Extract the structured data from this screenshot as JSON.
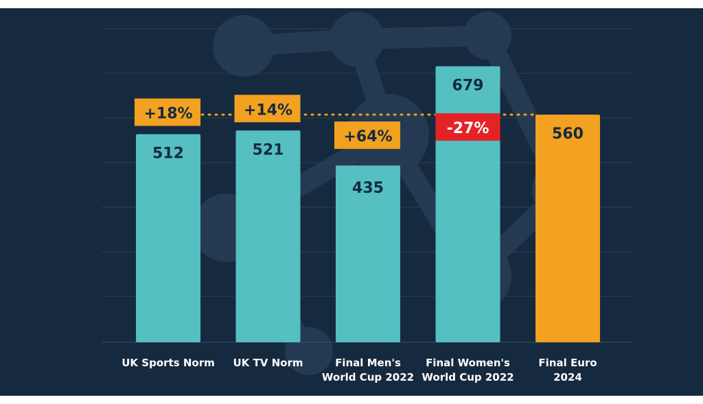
{
  "chart_data": {
    "type": "bar",
    "categories": [
      [
        "UK Sports Norm"
      ],
      [
        "UK TV Norm"
      ],
      [
        "Final Men's",
        "World Cup 2022"
      ],
      [
        "Final Women's",
        "World Cup 2022"
      ],
      [
        "Final Euro",
        "2024"
      ]
    ],
    "values": [
      512,
      521,
      435,
      679,
      560
    ],
    "value_labels": [
      "512",
      "521",
      "435",
      "679",
      "560"
    ],
    "differences": [
      "+18%",
      "+14%",
      "+64%",
      "-27%",
      ""
    ],
    "reference_value": 560,
    "reference_line": "dotted",
    "grid": true,
    "legend": "none",
    "colors": {
      "background": "#162a3f",
      "bar": "#55bfc2",
      "highlight_bar": "#f2a120",
      "increase_badge": "#f2a120",
      "decrease_badge": "#e32326",
      "value_text": "#152a3e",
      "category_text": "#ffffff",
      "reference_line": "#f2a120",
      "gridline": "#2b3f55",
      "watermark": "#243a52"
    }
  }
}
